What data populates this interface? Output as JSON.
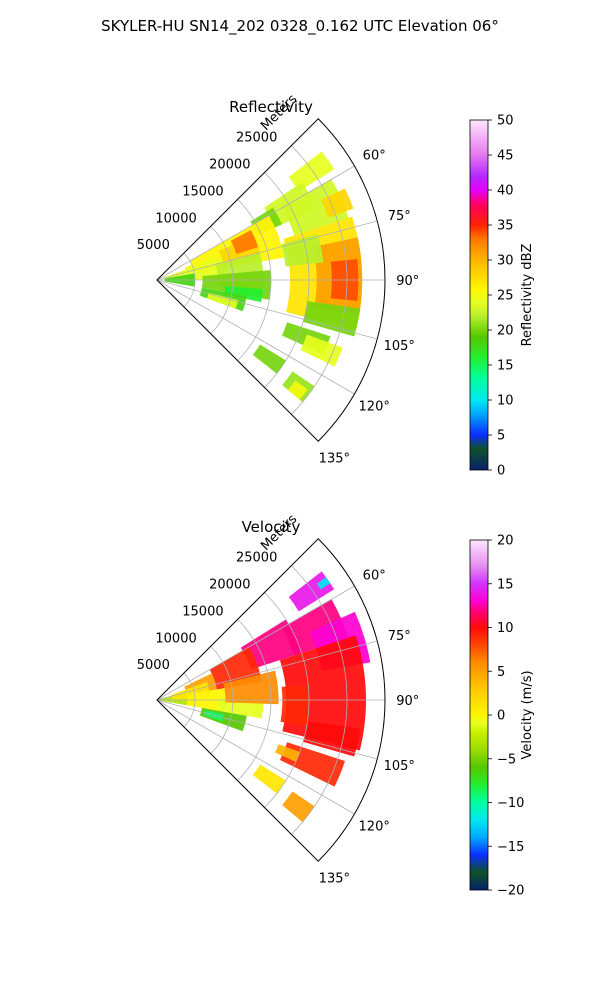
{
  "figure": {
    "suptitle": "SKYLER-HU  SN14_202  0328_0.162 UTC Elevation 06°"
  },
  "chart_data": [
    {
      "type": "heatmap",
      "projection": "polar-sector",
      "title": "Reflectivity",
      "range_label": "Meters",
      "range_ticks": [
        5000,
        10000,
        15000,
        20000,
        25000
      ],
      "range_tick_labels": [
        "5000",
        "10000",
        "15000",
        "20000",
        "25000"
      ],
      "rlim": [
        0,
        30000
      ],
      "azimuth_ticks": [
        60,
        75,
        90,
        105,
        120,
        135
      ],
      "azimuth_tick_labels": [
        "60°",
        "75°",
        "90°",
        "105°",
        "120°",
        "135°"
      ],
      "azimuth_range": [
        45,
        135
      ],
      "grid": true,
      "colorbar": {
        "label": "Reflectivity dBZ",
        "range": [
          0,
          50
        ],
        "ticks": [
          0,
          5,
          10,
          15,
          20,
          25,
          30,
          35,
          40,
          45,
          50
        ],
        "tick_labels": [
          "0",
          "5",
          "10",
          "15",
          "20",
          "25",
          "30",
          "35",
          "40",
          "45",
          "50"
        ],
        "stops": [
          [
            0,
            "#08216b"
          ],
          [
            3,
            "#0d5228"
          ],
          [
            5,
            "#0a2dff"
          ],
          [
            8,
            "#00a8ff"
          ],
          [
            10,
            "#00e8f0"
          ],
          [
            13,
            "#00ffa0"
          ],
          [
            16,
            "#22f032"
          ],
          [
            19,
            "#55c800"
          ],
          [
            22,
            "#b8f02a"
          ],
          [
            24,
            "#e6ff1e"
          ],
          [
            26,
            "#fff500"
          ],
          [
            30,
            "#ffb400"
          ],
          [
            33,
            "#ff7800"
          ],
          [
            35,
            "#ff2000"
          ],
          [
            38,
            "#ff0064"
          ],
          [
            40,
            "#e600ff"
          ],
          [
            42,
            "#b428ff"
          ],
          [
            45,
            "#e678f0"
          ],
          [
            50,
            "#ffe6ff"
          ]
        ]
      },
      "cells": [
        {
          "az": [
            52,
            58
          ],
          "r": [
            22000,
            27500
          ],
          "value": 24
        },
        {
          "az": [
            56,
            66
          ],
          "r": [
            17000,
            23000
          ],
          "value": 23
        },
        {
          "az": [
            58,
            66
          ],
          "r": [
            14500,
            18000
          ],
          "value": 20
        },
        {
          "az": [
            60,
            80
          ],
          "r": [
            5000,
            17000
          ],
          "value": 26
        },
        {
          "az": [
            65,
            79
          ],
          "r": [
            9000,
            14000
          ],
          "value": 28
        },
        {
          "az": [
            62,
            72
          ],
          "r": [
            11000,
            14000
          ],
          "value": 33
        },
        {
          "az": [
            66,
            80
          ],
          "r": [
            4000,
            8000
          ],
          "value": 25
        },
        {
          "az": [
            70,
            90
          ],
          "r": [
            1000,
            9000
          ],
          "value": 24
        },
        {
          "az": [
            80,
            100
          ],
          "r": [
            1000,
            5000
          ],
          "value": 18
        },
        {
          "az": [
            75,
            95
          ],
          "r": [
            8000,
            14000
          ],
          "value": 22
        },
        {
          "az": [
            85,
            100
          ],
          "r": [
            6000,
            15000
          ],
          "value": 20
        },
        {
          "az": [
            60,
            72
          ],
          "r": [
            19000,
            26500
          ],
          "value": 23
        },
        {
          "az": [
            64,
            70
          ],
          "r": [
            24000,
            27500
          ],
          "value": 28
        },
        {
          "az": [
            72,
            104
          ],
          "r": [
            17500,
            27000
          ],
          "value": 27
        },
        {
          "az": [
            78,
            100
          ],
          "r": [
            21000,
            27000
          ],
          "value": 31
        },
        {
          "az": [
            84,
            96
          ],
          "r": [
            23000,
            26500
          ],
          "value": 34
        },
        {
          "az": [
            74,
            84
          ],
          "r": [
            17000,
            22000
          ],
          "value": 22
        },
        {
          "az": [
            98,
            106
          ],
          "r": [
            20000,
            27000
          ],
          "value": 20
        },
        {
          "az": [
            95,
            102
          ],
          "r": [
            9000,
            14000
          ],
          "value": 16
        },
        {
          "az": [
            100,
            110
          ],
          "r": [
            6000,
            12000
          ],
          "value": 18
        },
        {
          "az": [
            104,
            110
          ],
          "r": [
            7000,
            11000
          ],
          "value": 24
        },
        {
          "az": [
            108,
            114
          ],
          "r": [
            18000,
            24000
          ],
          "value": 20
        },
        {
          "az": [
            110,
            116
          ],
          "r": [
            21000,
            26000
          ],
          "value": 24
        },
        {
          "az": [
            122,
            128
          ],
          "r": [
            16000,
            20000
          ],
          "value": 20
        },
        {
          "az": [
            124,
            130
          ],
          "r": [
            21500,
            25000
          ],
          "value": 21
        },
        {
          "az": [
            126,
            130
          ],
          "r": [
            22500,
            24500
          ],
          "value": 25
        }
      ]
    },
    {
      "type": "heatmap",
      "projection": "polar-sector",
      "title": "Velocity",
      "range_label": "Meters",
      "range_ticks": [
        5000,
        10000,
        15000,
        20000,
        25000
      ],
      "range_tick_labels": [
        "5000",
        "10000",
        "15000",
        "20000",
        "25000"
      ],
      "rlim": [
        0,
        30000
      ],
      "azimuth_ticks": [
        60,
        75,
        90,
        105,
        120,
        135
      ],
      "azimuth_tick_labels": [
        "60°",
        "75°",
        "90°",
        "105°",
        "120°",
        "135°"
      ],
      "azimuth_range": [
        45,
        135
      ],
      "grid": true,
      "colorbar": {
        "label": "Velocity (m/s)",
        "range": [
          -20,
          20
        ],
        "ticks": [
          -20,
          -15,
          -10,
          -5,
          0,
          5,
          10,
          15,
          20
        ],
        "tick_labels": [
          "−20",
          "−15",
          "−10",
          "−5",
          "0",
          "5",
          "10",
          "15",
          "20"
        ],
        "stops": [
          [
            -20,
            "#08216b"
          ],
          [
            -18,
            "#0d5228"
          ],
          [
            -16,
            "#0a2dff"
          ],
          [
            -14,
            "#00a8ff"
          ],
          [
            -12,
            "#00e8f0"
          ],
          [
            -10,
            "#00ffa0"
          ],
          [
            -8,
            "#22f032"
          ],
          [
            -6,
            "#55c800"
          ],
          [
            -4,
            "#9bdc00"
          ],
          [
            -2,
            "#c8f000"
          ],
          [
            -1,
            "#e6ff1e"
          ],
          [
            0,
            "#fff500"
          ],
          [
            3,
            "#ffc800"
          ],
          [
            6,
            "#ff8c00"
          ],
          [
            8,
            "#ff4600"
          ],
          [
            10,
            "#ff0a0a"
          ],
          [
            12,
            "#ff0082"
          ],
          [
            13,
            "#ff00d2"
          ],
          [
            15,
            "#d232ff"
          ],
          [
            17,
            "#e68cf0"
          ],
          [
            20,
            "#ffe6ff"
          ]
        ]
      },
      "cells": [
        {
          "az": [
            52,
            58
          ],
          "r": [
            22000,
            27500
          ],
          "value": 14
        },
        {
          "az": [
            54,
            56
          ],
          "r": [
            26000,
            27500
          ],
          "value": -12
        },
        {
          "az": [
            58,
            72
          ],
          "r": [
            13000,
            20000
          ],
          "value": 12
        },
        {
          "az": [
            60,
            80
          ],
          "r": [
            8000,
            14000
          ],
          "value": 9
        },
        {
          "az": [
            64,
            80
          ],
          "r": [
            4000,
            8000
          ],
          "value": 5
        },
        {
          "az": [
            75,
            100
          ],
          "r": [
            0,
            5000
          ],
          "value": -3
        },
        {
          "az": [
            70,
            88
          ],
          "r": [
            2000,
            7000
          ],
          "value": 1
        },
        {
          "az": [
            80,
            100
          ],
          "r": [
            4000,
            9000
          ],
          "value": 0
        },
        {
          "az": [
            88,
            100
          ],
          "r": [
            8000,
            14000
          ],
          "value": -1
        },
        {
          "az": [
            76,
            92
          ],
          "r": [
            9000,
            16000
          ],
          "value": 6
        },
        {
          "az": [
            60,
            72
          ],
          "r": [
            19000,
            26500
          ],
          "value": 12
        },
        {
          "az": [
            66,
            80
          ],
          "r": [
            22000,
            28500
          ],
          "value": 13
        },
        {
          "az": [
            72,
            104
          ],
          "r": [
            17000,
            27500
          ],
          "value": 10
        },
        {
          "az": [
            84,
            100
          ],
          "r": [
            16500,
            20000
          ],
          "value": 9
        },
        {
          "az": [
            98,
            106
          ],
          "r": [
            20000,
            27000
          ],
          "value": 10
        },
        {
          "az": [
            100,
            110
          ],
          "r": [
            6000,
            12000
          ],
          "value": -6
        },
        {
          "az": [
            102,
            108
          ],
          "r": [
            6500,
            9000
          ],
          "value": -9
        },
        {
          "az": [
            108,
            116
          ],
          "r": [
            18000,
            26000
          ],
          "value": 9
        },
        {
          "az": [
            110,
            114
          ],
          "r": [
            17000,
            20000
          ],
          "value": 4
        },
        {
          "az": [
            122,
            128
          ],
          "r": [
            16000,
            20000
          ],
          "value": 1
        },
        {
          "az": [
            124,
            130
          ],
          "r": [
            21500,
            25000
          ],
          "value": 5
        }
      ]
    }
  ]
}
